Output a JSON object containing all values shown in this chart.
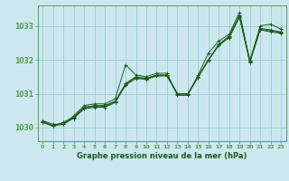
{
  "title": "Graphe pression niveau de la mer (hPa)",
  "background_color": "#cce8ee",
  "grid_color": "#99ccd4",
  "line_color": "#1a5c1a",
  "xlim": [
    -0.5,
    23.5
  ],
  "ylim": [
    1029.6,
    1033.6
  ],
  "yticks": [
    1030,
    1031,
    1032,
    1033
  ],
  "xtick_labels": [
    "0",
    "1",
    "2",
    "3",
    "4",
    "5",
    "6",
    "7",
    "8",
    "9",
    "10",
    "11",
    "12",
    "13",
    "14",
    "15",
    "16",
    "17",
    "18",
    "19",
    "20",
    "21",
    "22",
    "23"
  ],
  "series": [
    [
      1030.2,
      1030.1,
      1030.1,
      1030.35,
      1030.65,
      1030.7,
      1030.7,
      1030.85,
      1031.85,
      1031.55,
      1031.5,
      1031.6,
      1031.6,
      1030.95,
      1030.95,
      1031.55,
      1032.2,
      1032.55,
      1032.75,
      1033.4,
      1031.95,
      1033.0,
      1033.05,
      1032.9
    ],
    [
      1030.2,
      1030.05,
      1030.15,
      1030.3,
      1030.6,
      1030.65,
      1030.65,
      1030.78,
      1031.3,
      1031.5,
      1031.45,
      1031.55,
      1031.55,
      1031.0,
      1031.0,
      1031.5,
      1032.0,
      1032.45,
      1032.7,
      1033.3,
      1031.98,
      1032.92,
      1032.88,
      1032.82
    ],
    [
      1030.15,
      1030.05,
      1030.15,
      1030.32,
      1030.58,
      1030.63,
      1030.63,
      1030.76,
      1031.28,
      1031.48,
      1031.44,
      1031.54,
      1031.54,
      1031.0,
      1031.0,
      1031.5,
      1032.0,
      1032.45,
      1032.68,
      1033.28,
      1031.95,
      1032.9,
      1032.85,
      1032.8
    ],
    [
      1030.15,
      1030.05,
      1030.1,
      1030.28,
      1030.55,
      1030.6,
      1030.6,
      1030.74,
      1031.25,
      1031.45,
      1031.42,
      1031.52,
      1031.52,
      1030.98,
      1030.98,
      1031.48,
      1031.98,
      1032.42,
      1032.65,
      1033.25,
      1031.92,
      1032.88,
      1032.82,
      1032.78
    ]
  ]
}
